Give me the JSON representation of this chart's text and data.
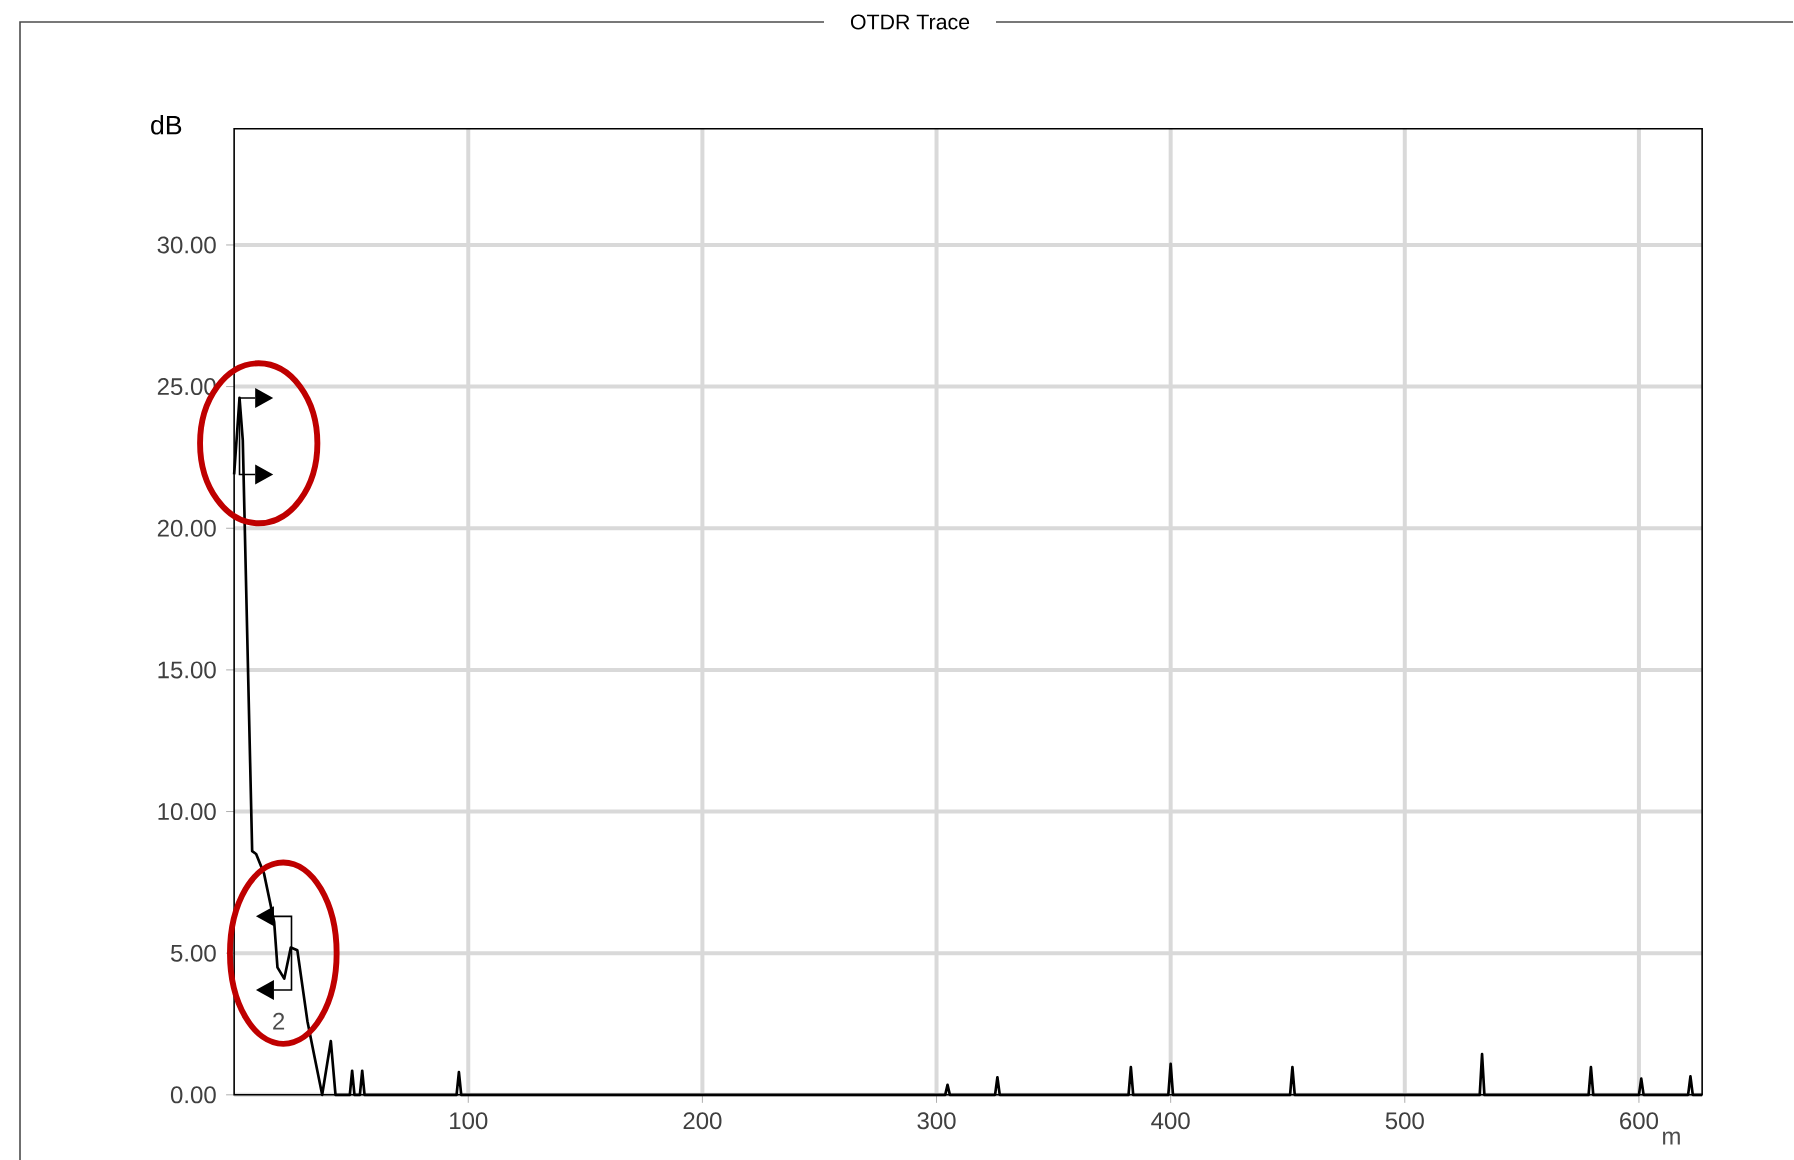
{
  "chart_data": {
    "type": "line",
    "title": "OTDR Trace",
    "xlabel": "m",
    "ylabel": "dB",
    "xlim": [
      0,
      627
    ],
    "ylim": [
      0,
      34.1
    ],
    "xticks": [
      100,
      200,
      300,
      400,
      500,
      600
    ],
    "yticks": [
      {
        "value": 0,
        "label": "0.00"
      },
      {
        "value": 5,
        "label": "5.00"
      },
      {
        "value": 10,
        "label": "10.00"
      },
      {
        "value": 15,
        "label": "15.00"
      },
      {
        "value": 20,
        "label": "20.00"
      },
      {
        "value": 25,
        "label": "25.00"
      },
      {
        "value": 30,
        "label": "30.00"
      }
    ],
    "grid": true,
    "marker": "none",
    "line_style": "solid",
    "annotations": [
      "2"
    ],
    "series": [
      {
        "color": "#000000",
        "x": [
          0,
          2.3,
          3.7,
          7.7,
          9.4,
          12.8,
          17.1,
          18.5,
          21.4,
          24.2,
          27,
          31.3,
          34.2,
          37.6,
          41.3,
          43.3,
          49.4,
          50.4,
          51.4,
          53.7,
          54.7,
          55.7,
          95,
          96,
          97,
          303.7,
          304.7,
          305.7,
          325,
          326,
          327,
          382,
          383,
          384,
          399,
          400,
          401,
          451,
          452,
          453,
          532,
          533,
          534,
          578.5,
          579.5,
          580.5,
          600,
          601,
          602,
          621,
          622,
          623,
          627
        ],
        "values": [
          21.9,
          24.6,
          23.1,
          8.6,
          8.5,
          7.8,
          6.1,
          4.5,
          4.1,
          5.2,
          5.1,
          2.6,
          1.4,
          0,
          1.9,
          0,
          0,
          0.85,
          0,
          0,
          0.85,
          0,
          0,
          0.8,
          0,
          0,
          0.35,
          0,
          0,
          0.62,
          0,
          0,
          0.98,
          0,
          0,
          1.09,
          0,
          0,
          0.98,
          0,
          0,
          1.44,
          0,
          0,
          0.98,
          0,
          0,
          0.57,
          0,
          0,
          0.65,
          0,
          0
        ]
      }
    ]
  }
}
